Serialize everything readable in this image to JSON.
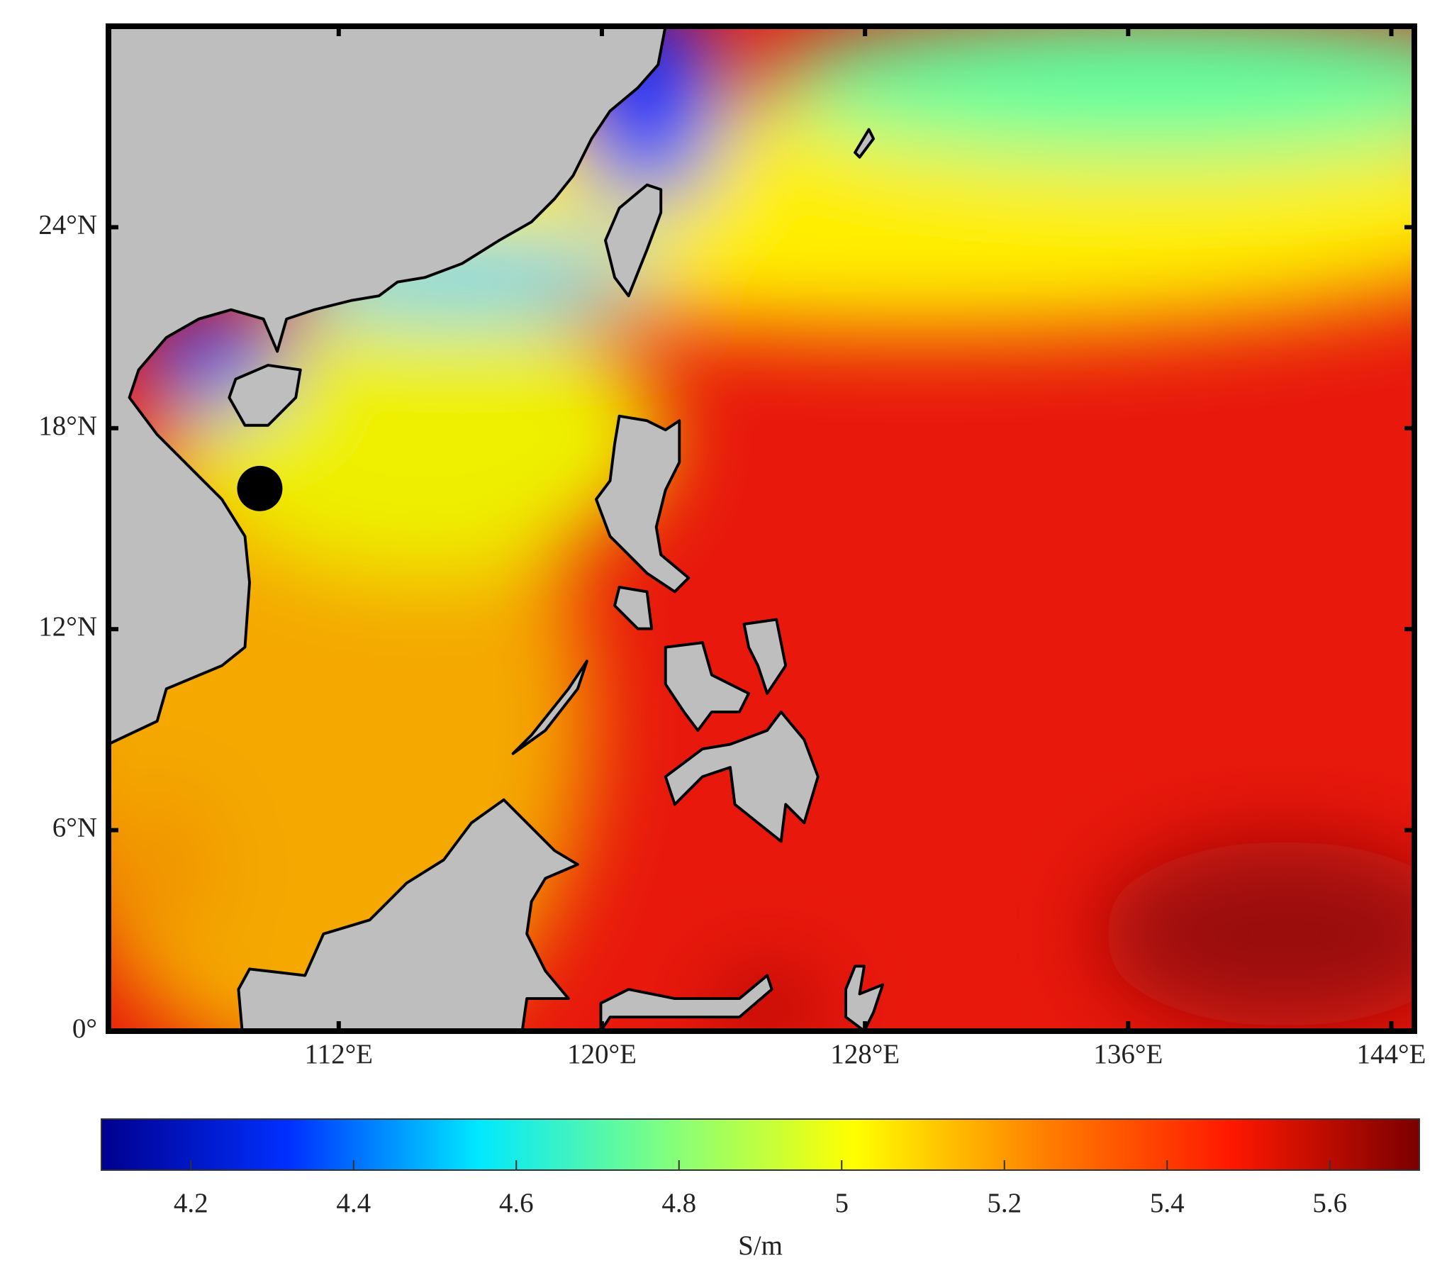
{
  "chart_data": {
    "type": "map",
    "xlim": [
      105,
      144.7
    ],
    "ylim": [
      0,
      30
    ],
    "xticks": [
      {
        "value": 112,
        "label": "112°E"
      },
      {
        "value": 120,
        "label": "120°E"
      },
      {
        "value": 128,
        "label": "128°E"
      },
      {
        "value": 136,
        "label": "136°E"
      },
      {
        "value": 144,
        "label": "144°E"
      }
    ],
    "yticks": [
      {
        "value": 0,
        "label": "0°"
      },
      {
        "value": 6,
        "label": "6°N"
      },
      {
        "value": 12,
        "label": "12°N"
      },
      {
        "value": 18,
        "label": "18°N"
      },
      {
        "value": 24,
        "label": "24°N"
      }
    ],
    "marker": {
      "x": 109.6,
      "y": 16.2,
      "color": "#000000"
    },
    "colorbar": {
      "label": "S/m",
      "clim": [
        4.09,
        5.71
      ],
      "ticks": [
        4.2,
        4.4,
        4.6,
        4.8,
        5,
        5.2,
        5.4,
        5.6
      ],
      "colormap": [
        "#00008f",
        "#0030ff",
        "#00e8ff",
        "#80ff80",
        "#ffff00",
        "#ff8000",
        "#ff1800",
        "#7a0000"
      ]
    }
  }
}
